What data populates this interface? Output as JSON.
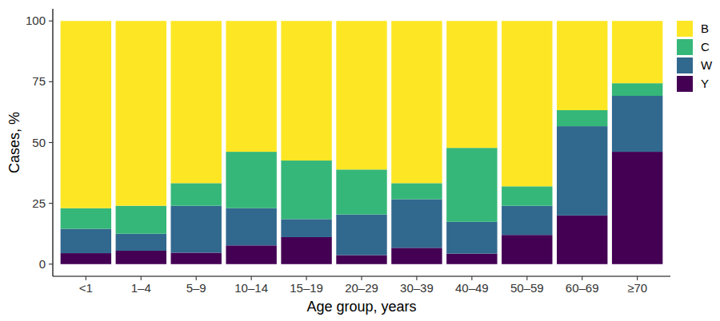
{
  "chart_data": {
    "type": "bar",
    "stacked": true,
    "legend": "right",
    "grid": false,
    "x_label": "Age group, years",
    "y_label": "Cases, %",
    "categories": [
      "<1",
      "1–4",
      "5–9",
      "10–14",
      "15–19",
      "20–29",
      "30–39",
      "40–49",
      "50–59",
      "60–69",
      "≥70"
    ],
    "ylim": [
      -5,
      105
    ],
    "yticks": [
      0,
      25,
      50,
      75,
      100
    ],
    "series": [
      {
        "name": "B",
        "color": "#fde725",
        "values": [
          77.0,
          76.0,
          66.7,
          53.8,
          57.4,
          61.1,
          66.7,
          52.2,
          68.0,
          36.7,
          25.6
        ]
      },
      {
        "name": "C",
        "color": "#35b779",
        "values": [
          8.5,
          11.5,
          9.3,
          23.2,
          24.1,
          18.5,
          6.6,
          30.4,
          8.0,
          6.6,
          5.2
        ]
      },
      {
        "name": "W",
        "color": "#31688e",
        "values": [
          10.0,
          7.0,
          19.3,
          15.3,
          7.4,
          16.7,
          20.0,
          13.1,
          12.0,
          36.7,
          23.0
        ]
      },
      {
        "name": "Y",
        "color": "#440154",
        "values": [
          4.5,
          5.5,
          4.7,
          7.7,
          11.1,
          3.7,
          6.7,
          4.3,
          12.0,
          20.0,
          46.2
        ]
      }
    ]
  }
}
